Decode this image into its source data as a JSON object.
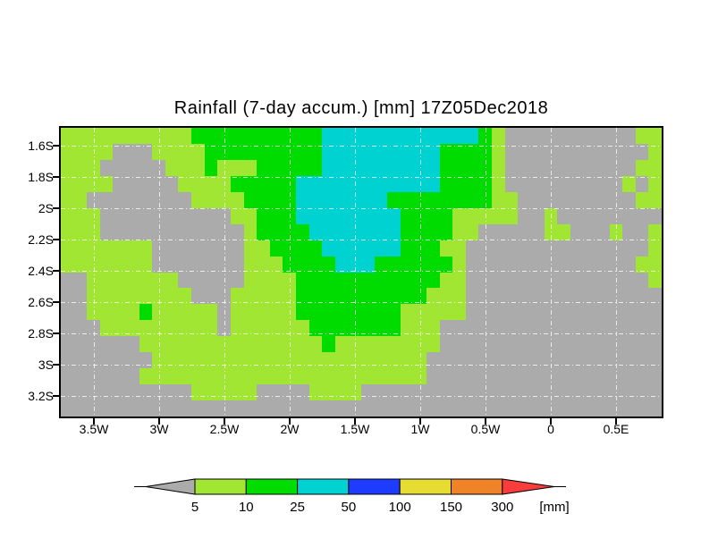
{
  "title": "Rainfall (7-day accum.) [mm] 17Z05Dec2018",
  "chart_data": {
    "type": "heatmap",
    "title": "Rainfall (7-day accum.) [mm] 17Z05Dec2018",
    "x_axis": "longitude",
    "y_axis": "latitude",
    "x_tick_labels": [
      "3.5W",
      "3W",
      "2.5W",
      "2W",
      "1.5W",
      "1W",
      "0.5W",
      "0",
      "0.5E"
    ],
    "y_tick_labels": [
      "1.6S",
      "1.8S",
      "2S",
      "2.2S",
      "2.4S",
      "2.6S",
      "2.8S",
      "3S",
      "3.2S"
    ],
    "grid_on": true,
    "unit": "[mm]",
    "grid": {
      "cols": 46,
      "rows": 18,
      "palette": {
        "G": "#ababab",
        "Y": "#a0e632",
        "E": "#00dc00",
        "C": "#00d2d2"
      },
      "palette_meaning": {
        "G": "< 5 mm",
        "Y": "5-10 mm",
        "E": "10-25 mm",
        "C": "25-50 mm"
      },
      "cells": [
        "YYYYYYYYYYEEEEEEEEEECCCCCCCCCCCCEYGGGGGGGGGGYY",
        "YYYYGGGYYYYEEEEEEEEECCCCCCCCCEEEEYGGGGGGGGGGGY",
        "YYYGGGGGYYYEYYYEEEEECCCCCCCCCEEEEYGGGGGGGGGGYY",
        "YYYYGGGGGYYYYEEEEECCCCCCCCCCCEEEEYGGGGGGGGGYGY",
        "YYGGGGGGGGYYYYEEEECCCCCCCEEEEEEEEYYGGGGGGGGGYY",
        "YYYGGGGGGGGGGYYEEECCCCCCCCEEEEYYYYYGGYGGGGGGGG",
        "YYYGGGGGGGGGGGYEEEECCCCCCCEEEEYYGGGGGYYGGGYGGY",
        "YYYYYYYGGGGGGGYYEEEECCCCCCEEEYYGGGGGGGGGGGGGGY",
        "YYYYYYYGGGGGGGYYYEEEECCCEEEEEEYGGGGGGGGGGGGGYY",
        "GGYYYYYYYGGGGGYYYYEEEEEEEEEEEYYGGGGGGGGGGGGGGY",
        "GGYYYYYYYYGGGYYYYYEEEEEEEEEEYYYGGGGGGGGGGGGGGG",
        "GGYYYYEYYYYYGYYYYYEEEEEEEEYYYYYGGGGGGGGGGGGGGG",
        "GGGYYYYYYYYYGYYYYYYEEEEEEEYYYGGGGGGGGGGGGGGGGG",
        "GGGGGGYYYYYYYYYYYYYYEYYYYYYYYGGGGGGGGGGGGGGGGG",
        "GGGGGGGYYYYYYYYYYYYYYYYYYYYYGGGGGGGGGGGGGGGGGG",
        "GGGGGGYYYYYYYYYYYYYYYYYYYYYYGGGGGGGGGGGGGGGGGG",
        "GGGGGGGGGGYYYYYGGGGYYYYGGGGGGGGGGGGGGGGGGGGGGG",
        "GGGGGGGGGGGGGGGGGGGGGGGGGGGGGGGGGGGGGGGGGGGGGG"
      ]
    },
    "legend": {
      "boundary_labels": [
        "5",
        "10",
        "25",
        "50",
        "100",
        "150",
        "300"
      ],
      "band_colors": [
        "#ababab",
        "#a0e632",
        "#00dc00",
        "#00d2d2",
        "#1e3cff",
        "#e6dc32",
        "#f08228",
        "#fa3c3c"
      ],
      "underflow_color": "#ababab",
      "overflow_color": "#fa3c3c",
      "unit_label": "[mm]"
    }
  }
}
